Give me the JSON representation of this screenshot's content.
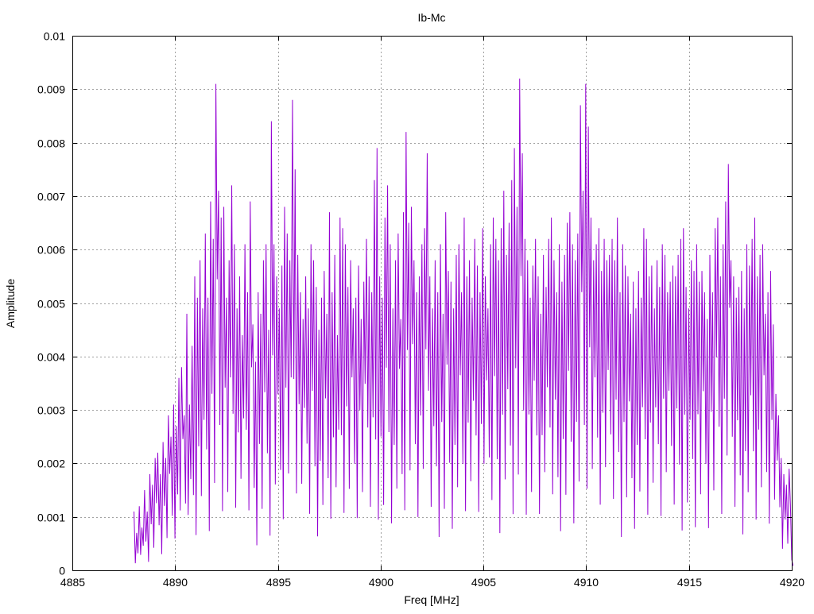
{
  "chart_data": {
    "type": "line",
    "title": "Ib-Mc",
    "xlabel": "Freq [MHz]",
    "ylabel": "Amplitude",
    "xlim": [
      4885,
      4920
    ],
    "ylim": [
      0,
      0.01
    ],
    "x_ticks": [
      "4885",
      "4890",
      "4895",
      "4900",
      "4905",
      "4910",
      "4915",
      "4920"
    ],
    "y_ticks": [
      "0",
      "0.001",
      "0.002",
      "0.003",
      "0.004",
      "0.005",
      "0.006",
      "0.007",
      "0.008",
      "0.009",
      "0.01"
    ],
    "grid": true,
    "series": [
      {
        "color": "#9400d3",
        "x_start": 4888.0,
        "x_end": 4920.0,
        "x_step": 0.1,
        "values": [
          0.0011,
          0.0007,
          0.0012,
          0.0008,
          0.0015,
          0.0011,
          0.0018,
          0.0016,
          0.0021,
          0.0022,
          0.0018,
          0.0024,
          0.0021,
          0.0029,
          0.0025,
          0.0031,
          0.0027,
          0.0036,
          0.0038,
          0.0029,
          0.0048,
          0.0031,
          0.0042,
          0.0055,
          0.0051,
          0.0058,
          0.0049,
          0.0063,
          0.0051,
          0.0069,
          0.0062,
          0.0091,
          0.0071,
          0.0066,
          0.0068,
          0.0051,
          0.0058,
          0.0072,
          0.0061,
          0.0049,
          0.0055,
          0.0044,
          0.0061,
          0.0052,
          0.0069,
          0.0046,
          0.0039,
          0.0052,
          0.0048,
          0.0058,
          0.0061,
          0.0045,
          0.0084,
          0.0061,
          0.0055,
          0.0049,
          0.0057,
          0.0068,
          0.0063,
          0.0058,
          0.0088,
          0.0075,
          0.0059,
          0.0052,
          0.0047,
          0.0055,
          0.0049,
          0.0061,
          0.0058,
          0.0053,
          0.0045,
          0.0051,
          0.0056,
          0.0048,
          0.0067,
          0.0052,
          0.0059,
          0.0044,
          0.0066,
          0.0064,
          0.0061,
          0.0053,
          0.0058,
          0.0049,
          0.0051,
          0.0057,
          0.0047,
          0.0054,
          0.0062,
          0.0055,
          0.0052,
          0.0073,
          0.0079,
          0.0055,
          0.0051,
          0.0066,
          0.0072,
          0.0061,
          0.0049,
          0.0058,
          0.0063,
          0.0047,
          0.0067,
          0.0082,
          0.0065,
          0.0068,
          0.0058,
          0.0052,
          0.0055,
          0.0061,
          0.0064,
          0.0078,
          0.0055,
          0.0049,
          0.0058,
          0.0052,
          0.0061,
          0.0048,
          0.0067,
          0.0056,
          0.0054,
          0.0049,
          0.0059,
          0.0061,
          0.0052,
          0.0066,
          0.0055,
          0.0058,
          0.0051,
          0.0062,
          0.0057,
          0.0052,
          0.0064,
          0.0055,
          0.0049,
          0.0061,
          0.0066,
          0.0062,
          0.0058,
          0.0064,
          0.0071,
          0.0059,
          0.0065,
          0.0073,
          0.0079,
          0.0068,
          0.0092,
          0.0078,
          0.0062,
          0.0058,
          0.0051,
          0.0057,
          0.0062,
          0.0055,
          0.0048,
          0.0059,
          0.0053,
          0.0062,
          0.0066,
          0.0058,
          0.0052,
          0.0061,
          0.0054,
          0.0059,
          0.0065,
          0.0067,
          0.0061,
          0.0058,
          0.0063,
          0.0087,
          0.0071,
          0.0091,
          0.0083,
          0.0066,
          0.0058,
          0.0061,
          0.0064,
          0.0056,
          0.0062,
          0.0058,
          0.0059,
          0.0062,
          0.0058,
          0.0066,
          0.0052,
          0.0061,
          0.0057,
          0.0055,
          0.0048,
          0.0054,
          0.0049,
          0.0056,
          0.0051,
          0.0064,
          0.0062,
          0.0055,
          0.0057,
          0.0049,
          0.0058,
          0.0053,
          0.0061,
          0.0059,
          0.0052,
          0.0054,
          0.0057,
          0.0055,
          0.0059,
          0.0062,
          0.0064,
          0.0053,
          0.0049,
          0.0058,
          0.0056,
          0.0061,
          0.0054,
          0.0056,
          0.0052,
          0.0047,
          0.0059,
          0.0052,
          0.0064,
          0.0066,
          0.0055,
          0.0061,
          0.0069,
          0.0076,
          0.0058,
          0.0055,
          0.0051,
          0.0053,
          0.0056,
          0.0049,
          0.0061,
          0.0057,
          0.0062,
          0.0066,
          0.0055,
          0.0059,
          0.0061,
          0.0048,
          0.0052,
          0.0056,
          0.0046,
          0.0033,
          0.0029,
          0.0021,
          0.0018,
          0.0016,
          0.0019,
          0.0002
        ]
      }
    ]
  }
}
